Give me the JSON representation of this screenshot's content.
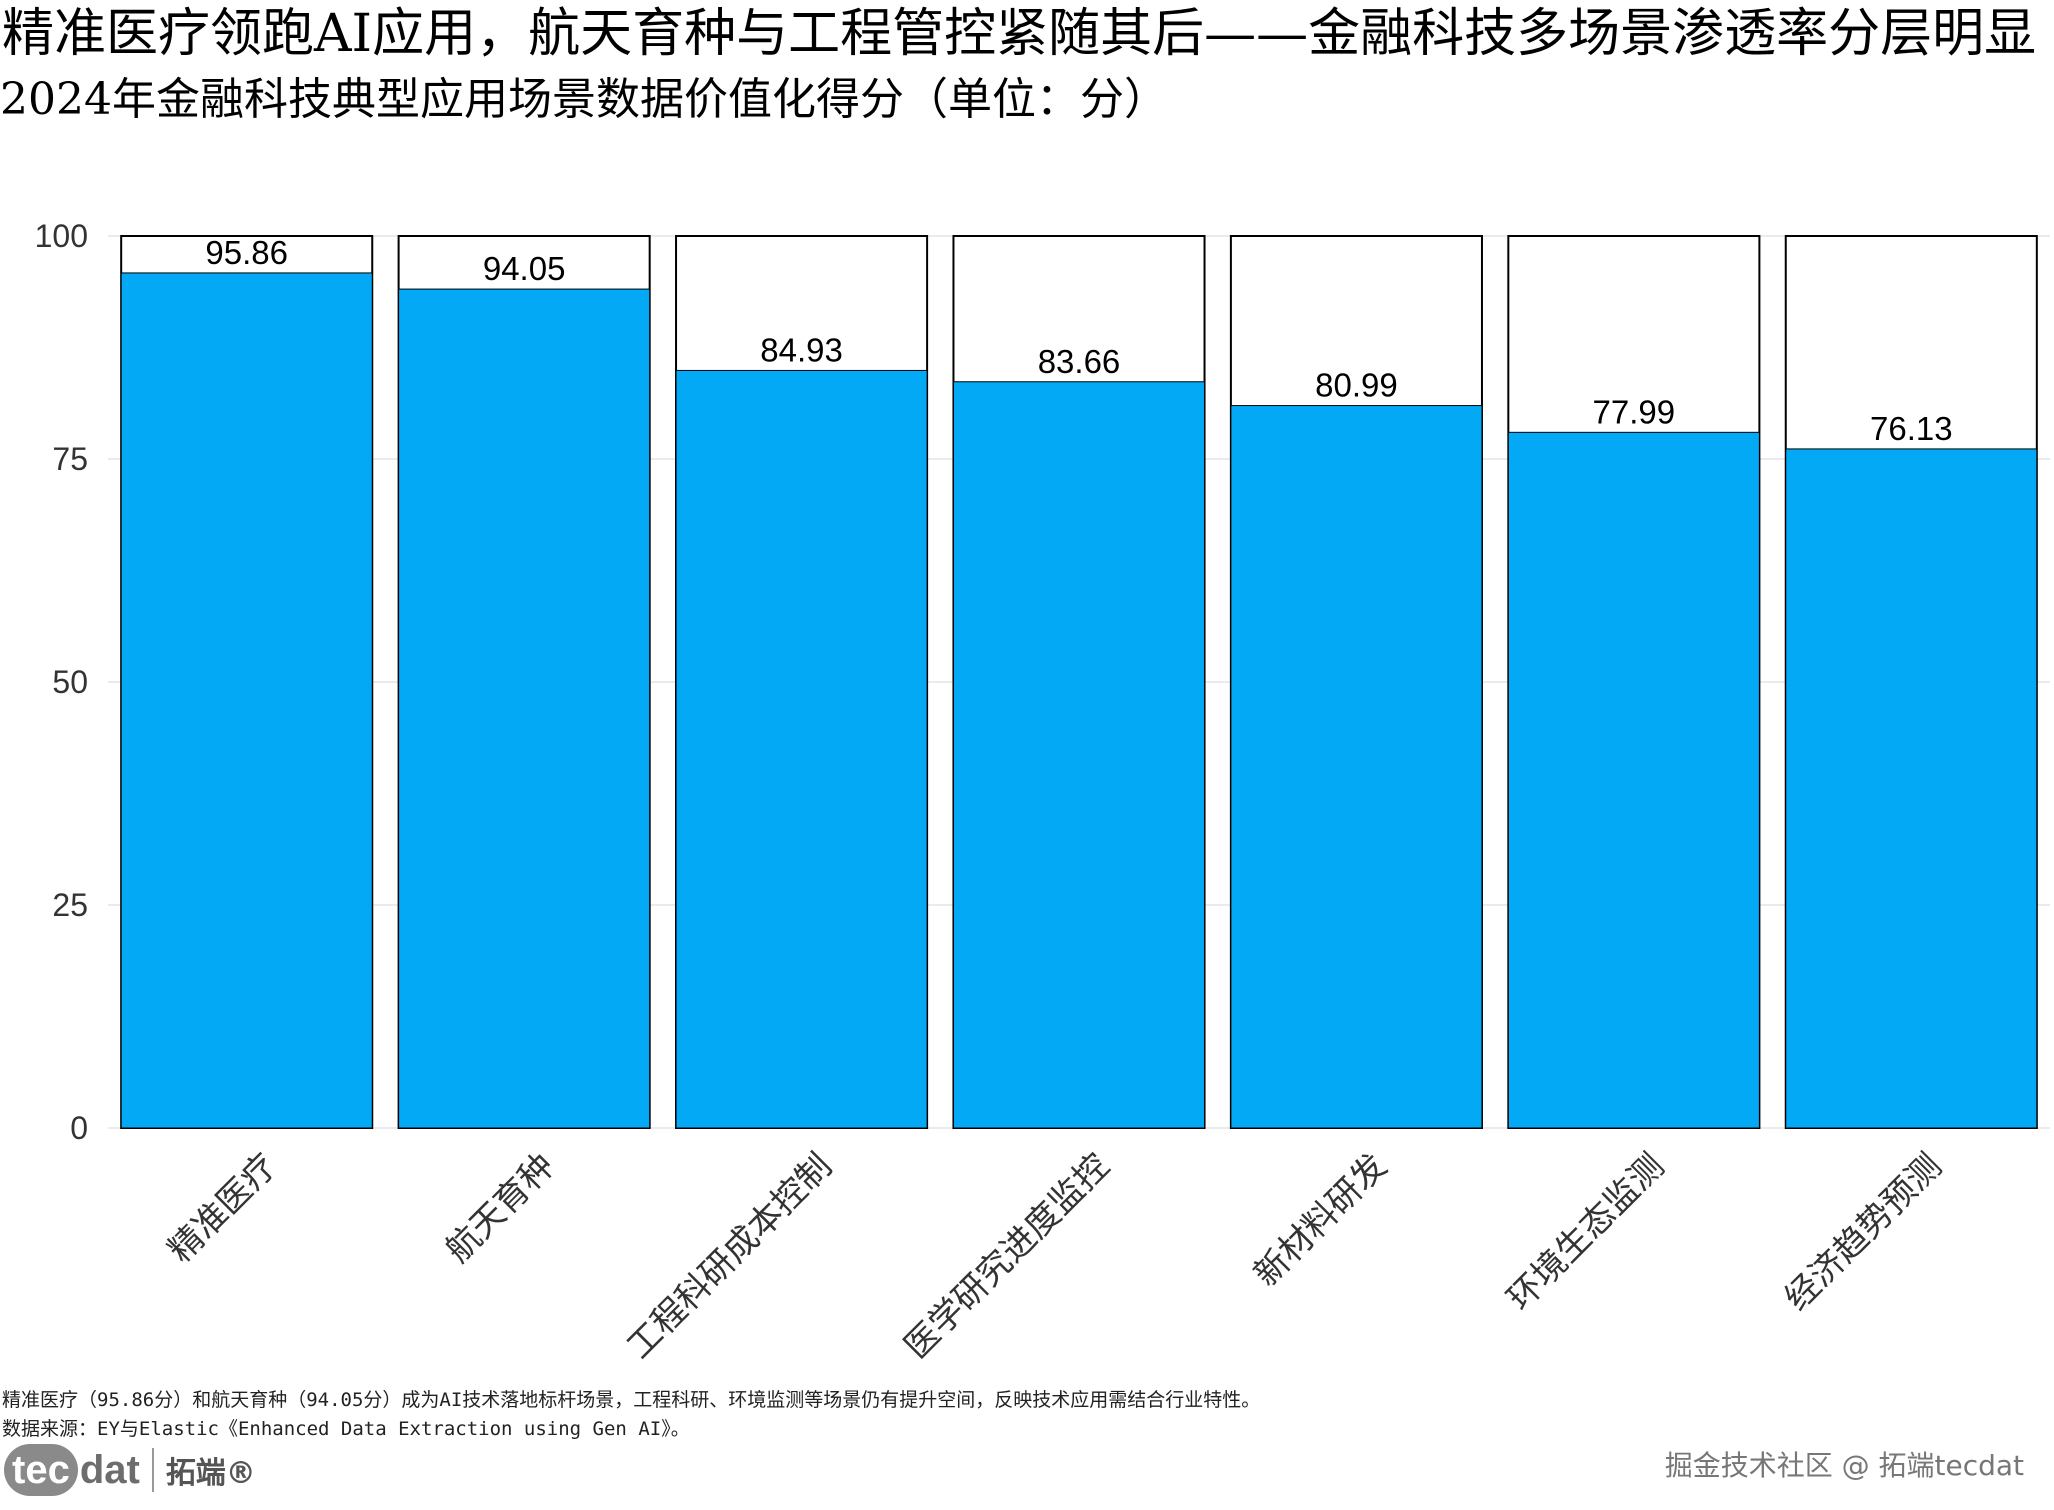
{
  "title": "精准医疗领跑AI应用，航天育种与工程管控紧随其后——金融科技多场景渗透率分层明显",
  "subtitle": "2024年金融科技典型应用场景数据价值化得分（单位：分）",
  "chart_data": {
    "type": "bar",
    "categories": [
      "精准医疗",
      "航天育种",
      "工程科研成本控制",
      "医学研究进度监控",
      "新材料研发",
      "环境生态监测",
      "经济趋势预测"
    ],
    "values": [
      95.86,
      94.05,
      84.93,
      83.66,
      80.99,
      77.99,
      76.13
    ],
    "data_labels": [
      "95.86",
      "94.05",
      "84.93",
      "83.66",
      "80.99",
      "77.99",
      "76.13"
    ],
    "ylim": [
      0,
      100
    ],
    "yticks": [
      0,
      25,
      50,
      75,
      100
    ],
    "xlabel": "",
    "ylabel": "",
    "grid": true,
    "background_bar_max": 100,
    "bar_color": "#03A9F4",
    "background_bar_color": "#ffffff",
    "outline_color": "#000000"
  },
  "footer": {
    "note": "精准医疗（95.86分）和航天育种（94.05分）成为AI技术落地标杆场景，工程科研、环境监测等场景仍有提升空间，反映技术应用需结合行业特性。",
    "source": "数据来源：EY与Elastic《Enhanced Data Extraction using Gen AI》。"
  },
  "logo": {
    "tec": "tec",
    "dat": "dat",
    "cn": "拓端®"
  },
  "watermark": "掘金技术社区 @ 拓端tecdat"
}
